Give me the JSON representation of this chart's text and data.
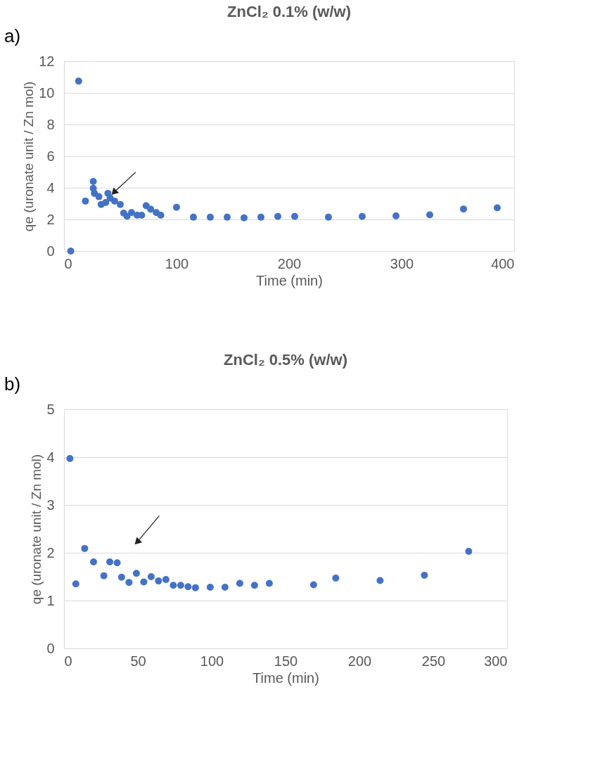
{
  "chart_data": [
    {
      "type": "scatter",
      "title": "ZnCl₂ 0.1% (w/w)",
      "xlabel": "Time (min)",
      "ylabel": "qe (uronate  unit / Zn mol)",
      "annotations": [
        "a)"
      ],
      "series": [
        {
          "color": "#4472c4",
          "x": [
            6,
            13,
            19,
            26,
            26,
            27,
            31,
            33,
            37,
            39,
            41,
            45,
            50,
            53,
            56,
            60,
            65,
            69,
            73,
            77,
            82,
            86,
            100,
            115,
            130,
            145,
            160,
            175,
            190,
            205,
            235,
            265,
            295,
            325,
            355,
            385
          ],
          "values": [
            0,
            10.74,
            3.16,
            4.4,
            3.97,
            3.65,
            3.44,
            2.95,
            3.07,
            3.65,
            3.35,
            3.16,
            2.95,
            2.4,
            2.2,
            2.43,
            2.27,
            2.27,
            2.87,
            2.65,
            2.43,
            2.27,
            2.77,
            2.14,
            2.14,
            2.14,
            2.1,
            2.14,
            2.19,
            2.19,
            2.14,
            2.19,
            2.22,
            2.29,
            2.66,
            2.73
          ]
        }
      ],
      "xlim": [
        0,
        400
      ],
      "xticks": [
        0,
        100,
        200,
        300,
        400
      ],
      "ylim": [
        0,
        12
      ],
      "yticks": [
        0,
        2,
        4,
        6,
        8,
        10,
        12
      ],
      "grid": "y",
      "marker": "circle"
    },
    {
      "type": "scatter",
      "title": "ZnCl₂ 0.5% (w/w)",
      "xlabel": "Time (min)",
      "ylabel": "qe (uronate unit / Zn mol)",
      "annotations": [
        "b)"
      ],
      "series": [
        {
          "color": "#4472c4",
          "x": [
            4,
            8,
            14,
            20,
            27,
            31,
            36,
            39,
            44,
            49,
            54,
            59,
            64,
            69,
            74,
            79,
            84,
            89,
            99,
            109,
            119,
            129,
            139,
            169,
            184,
            214,
            244,
            274
          ],
          "values": [
            3.97,
            1.35,
            2.09,
            1.81,
            1.52,
            1.81,
            1.79,
            1.49,
            1.38,
            1.57,
            1.39,
            1.5,
            1.41,
            1.44,
            1.32,
            1.32,
            1.29,
            1.27,
            1.28,
            1.28,
            1.36,
            1.32,
            1.36,
            1.33,
            1.47,
            1.42,
            1.53,
            2.03
          ]
        }
      ],
      "xlim": [
        0,
        300
      ],
      "xticks": [
        0,
        50,
        100,
        150,
        200,
        250,
        300
      ],
      "ylim": [
        0,
        5
      ],
      "yticks": [
        0,
        1,
        2,
        3,
        4,
        5
      ],
      "grid": "y",
      "marker": "circle"
    }
  ]
}
